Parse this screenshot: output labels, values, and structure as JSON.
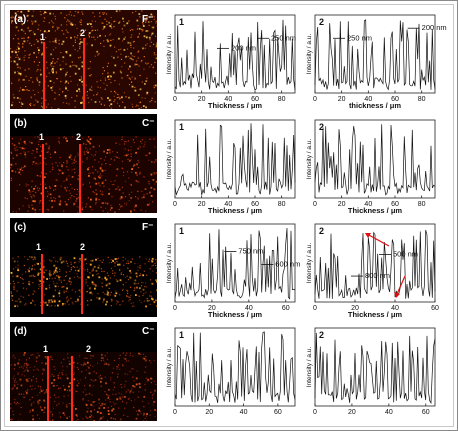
{
  "panels": [
    {
      "id": "a",
      "label": "(a)",
      "ion": "F⁻",
      "line_labels": [
        "1",
        "2"
      ],
      "bg": "#2a0600",
      "dot": "#ff7a1a",
      "bright": "#ffd35a"
    },
    {
      "id": "b",
      "label": "(b)",
      "ion": "C⁻",
      "line_labels": [
        "1",
        "2"
      ],
      "bg": "#1c0300",
      "dot": "#d23a10",
      "bright": "#ff6a20"
    },
    {
      "id": "c",
      "label": "(c)",
      "ion": "F⁻",
      "line_labels": [
        "1",
        "2"
      ],
      "bg": "#050100",
      "dot": "#cf5010",
      "bright": "#ffb030"
    },
    {
      "id": "d",
      "label": "(d)",
      "ion": "C⁻",
      "line_labels": [
        "1",
        "2"
      ],
      "bg": "#120200",
      "dot": "#b23010",
      "bright": "#e05a20"
    }
  ],
  "chart_data": [
    {
      "type": "line",
      "panel": "a",
      "label": "1",
      "xlabel": "Thickness / μm",
      "ylabel": "Intensity / a.u.",
      "xlim": [
        0,
        90
      ],
      "xticks": [
        0,
        20,
        40,
        60,
        80
      ],
      "seed": 11,
      "annotations": [
        {
          "text": "200 nm",
          "x": 36,
          "y": 0.62
        },
        {
          "text": "250 nm",
          "x": 66,
          "y": 0.76
        }
      ]
    },
    {
      "type": "line",
      "panel": "a",
      "label": "2",
      "xlabel": "thickness / μm",
      "ylabel": "Intensity / a.u.",
      "xlim": [
        0,
        90
      ],
      "xticks": [
        0,
        20,
        40,
        60,
        80
      ],
      "seed": 23,
      "annotations": [
        {
          "text": "250 nm",
          "x": 18,
          "y": 0.76
        },
        {
          "text": "200 nm",
          "x": 74,
          "y": 0.9
        }
      ]
    },
    {
      "type": "line",
      "panel": "b",
      "label": "1",
      "xlabel": "Thickness / μm",
      "ylabel": "Intensity / a.u.",
      "xlim": [
        0,
        90
      ],
      "xticks": [
        0,
        20,
        40,
        60,
        80
      ],
      "seed": 37,
      "annotations": []
    },
    {
      "type": "line",
      "panel": "b",
      "label": "2",
      "xlabel": "Thickness / μm",
      "ylabel": "Intensity / a.u.",
      "xlim": [
        0,
        90
      ],
      "xticks": [
        0,
        20,
        40,
        60,
        80
      ],
      "seed": 41,
      "annotations": []
    },
    {
      "type": "line",
      "panel": "c",
      "label": "1",
      "xlabel": "Thickness / μm",
      "ylabel": "Intensity / a.u.",
      "xlim": [
        0,
        65
      ],
      "xticks": [
        0,
        20,
        40,
        60
      ],
      "seed": 53,
      "annotations": [
        {
          "text": "750 nm",
          "x": 30,
          "y": 0.7
        },
        {
          "text": "600 nm",
          "x": 50,
          "y": 0.52
        }
      ]
    },
    {
      "type": "line",
      "panel": "c",
      "label": "2",
      "xlabel": "Thickness / μm",
      "ylabel": "Intensity / a.u.",
      "xlim": [
        0,
        60
      ],
      "xticks": [
        0,
        20,
        40,
        60
      ],
      "seed": 67,
      "annotations": [
        {
          "text": "500 nm",
          "x": 35,
          "y": 0.66
        },
        {
          "text": "800 nm",
          "x": 21,
          "y": 0.36
        }
      ]
    },
    {
      "type": "line",
      "panel": "d",
      "label": "1",
      "xlabel": "",
      "ylabel": "Intensity / a.u.",
      "xlim": [
        0,
        70
      ],
      "xticks": [
        0,
        20,
        40,
        60
      ],
      "seed": 71,
      "annotations": []
    },
    {
      "type": "line",
      "panel": "d",
      "label": "2",
      "xlabel": "",
      "ylabel": "Intensity / a.u.",
      "xlim": [
        0,
        65
      ],
      "xticks": [
        0,
        20,
        40,
        60
      ],
      "seed": 89,
      "annotations": []
    }
  ]
}
